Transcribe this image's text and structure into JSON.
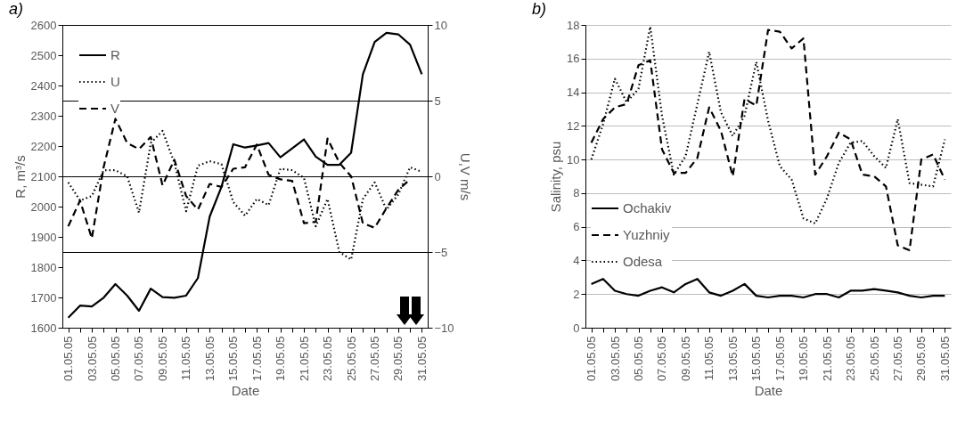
{
  "chart_data": [
    {
      "type": "line",
      "title": "a)",
      "xlabel": "Date",
      "ylabel": "R, m³/s",
      "y2label": "U,V m/s",
      "categories": [
        "01.05.05",
        null,
        "03.05.05",
        null,
        "05.05.05",
        null,
        "07.05.05",
        null,
        "09.05.05",
        null,
        "11.05.05",
        null,
        "13.05.05",
        null,
        "15.05.05",
        null,
        "17.05.05",
        null,
        "19.05.05",
        null,
        "21.05.05",
        null,
        "23.05.05",
        null,
        "25.05.05",
        null,
        "27.05.05",
        null,
        "29.05.05",
        null,
        "31.05.05"
      ],
      "series": [
        {
          "name": "R",
          "color": "#000000",
          "line_style": "solid",
          "values": [
            1633,
            1673,
            1670,
            1699,
            1744,
            1706,
            1656,
            1729,
            1701,
            1699,
            1706,
            1764,
            1967,
            2065,
            2206,
            2195,
            2202,
            2210,
            2163,
            2192,
            2222,
            2165,
            2138,
            2138,
            2178,
            2437,
            2544,
            2574,
            2569,
            2535,
            2437
          ]
        },
        {
          "name": "U",
          "color": "#000000",
          "line_style": "dotted",
          "axis": "y2",
          "values": [
            -0.4,
            -1.6,
            -1.3,
            0.4,
            0.4,
            0.0,
            -2.4,
            2.2,
            3.0,
            0.9,
            -2.3,
            0.7,
            1.0,
            0.8,
            -1.7,
            -2.6,
            -1.5,
            -1.9,
            0.5,
            0.4,
            -0.1,
            -3.3,
            -1.5,
            -5.0,
            -5.5,
            -1.5,
            -0.4,
            -2.2,
            -1.2,
            0.6,
            0.3
          ]
        },
        {
          "name": "V",
          "color": "#000000",
          "line_style": "dashed",
          "axis": "y2",
          "values": [
            -3.3,
            -1.6,
            -4.1,
            0.6,
            3.8,
            2.2,
            1.8,
            2.6,
            -0.6,
            1.1,
            -1.3,
            -2.2,
            -0.5,
            -0.7,
            0.5,
            0.6,
            2.1,
            0.1,
            -0.2,
            -0.3,
            -3.1,
            -3.0,
            2.5,
            0.9,
            0.0,
            -3.1,
            -3.4,
            -2.1,
            -0.9,
            -0.2,
            null
          ]
        }
      ],
      "ylim": [
        1600,
        2600
      ],
      "yticks": [
        1600,
        1700,
        1800,
        1900,
        2000,
        2100,
        2200,
        2300,
        2400,
        2500,
        2600
      ],
      "y2lim": [
        -10,
        10
      ],
      "y2ticks": [
        -10,
        -5,
        0,
        5,
        10
      ],
      "grid": "y2",
      "legend": "top left"
    },
    {
      "type": "line",
      "title": "b)",
      "xlabel": "Date",
      "ylabel": "Salinity, psu",
      "categories": [
        "01.05.05",
        null,
        "03.05.05",
        null,
        "05.05.05",
        null,
        "07.05.05",
        null,
        "09.05.05",
        null,
        "11.05.05",
        null,
        "13.05.05",
        null,
        "15.05.05",
        null,
        "17.05.05",
        null,
        "19.05.05",
        null,
        "21.05.05",
        null,
        "23.05.05",
        null,
        "25.05.05",
        null,
        "27.05.05",
        null,
        "29.05.05",
        null,
        "31.05.05"
      ],
      "series": [
        {
          "name": "Ochakiv",
          "color": "#000000",
          "line_style": "solid",
          "values": [
            2.6,
            2.9,
            2.2,
            2.0,
            1.9,
            2.2,
            2.4,
            2.1,
            2.6,
            2.9,
            2.1,
            1.9,
            2.2,
            2.6,
            1.9,
            1.8,
            1.9,
            1.9,
            1.8,
            2.0,
            2.0,
            1.8,
            2.2,
            2.2,
            2.3,
            2.2,
            2.1,
            1.9,
            1.8,
            1.9,
            1.9
          ]
        },
        {
          "name": "Yuzhniy",
          "color": "#000000",
          "line_style": "dashed",
          "values": [
            11.0,
            12.4,
            13.1,
            13.3,
            15.6,
            15.9,
            10.6,
            9.2,
            9.2,
            10.1,
            13.1,
            11.7,
            9.0,
            13.6,
            13.2,
            17.7,
            17.6,
            16.6,
            17.2,
            9.1,
            10.2,
            11.6,
            11.2,
            9.1,
            9.0,
            8.4,
            4.9,
            4.6,
            10.0,
            10.3,
            8.8
          ]
        },
        {
          "name": "Odesa",
          "color": "#000000",
          "line_style": "dotted",
          "values": [
            10.0,
            12.1,
            14.8,
            13.4,
            14.2,
            17.9,
            12.6,
            9.1,
            10.2,
            13.3,
            16.4,
            12.8,
            11.4,
            12.6,
            15.8,
            12.3,
            9.6,
            8.8,
            6.5,
            6.2,
            7.7,
            9.8,
            11.0,
            11.1,
            10.2,
            9.5,
            12.4,
            8.6,
            8.5,
            8.4,
            11.2
          ]
        }
      ],
      "ylim": [
        0,
        18
      ],
      "yticks": [
        0,
        2,
        4,
        6,
        8,
        10,
        12,
        14,
        16,
        18
      ],
      "grid": "y",
      "legend": "left"
    }
  ]
}
